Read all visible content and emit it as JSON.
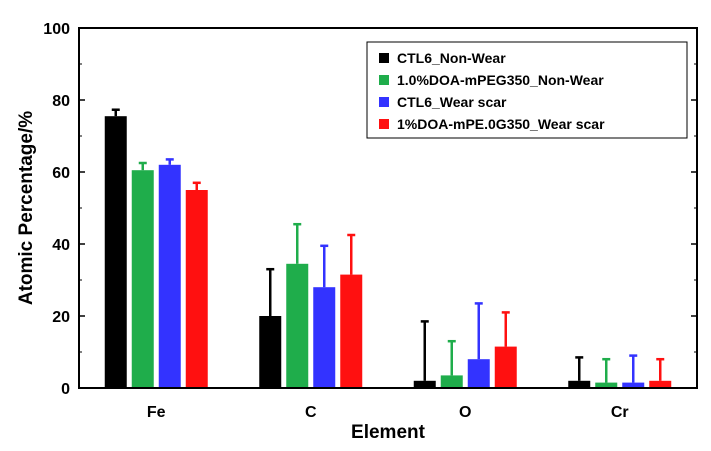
{
  "chart_data": {
    "type": "bar",
    "title": "",
    "xlabel": "Element",
    "ylabel": "Atomic Percentage/%",
    "categories": [
      "Fe",
      "C",
      "O",
      "Cr"
    ],
    "ylim": [
      0,
      100
    ],
    "yticks": [
      0,
      20,
      40,
      60,
      80,
      100
    ],
    "grid": false,
    "legend_position": "top-right",
    "error_bars": "upper",
    "series": [
      {
        "name": "CTL6_Non-Wear",
        "color": "#000000",
        "values": [
          75.5,
          20.0,
          2.0,
          2.0
        ],
        "errors": [
          1.8,
          13.0,
          16.5,
          6.5
        ]
      },
      {
        "name": "1.0%DOA-mPEG350_Non-Wear",
        "color": "#1fad4b",
        "values": [
          60.5,
          34.5,
          3.5,
          1.5
        ],
        "errors": [
          2.0,
          11.0,
          9.5,
          6.5
        ]
      },
      {
        "name": "CTL6_Wear scar",
        "color": "#3333ff",
        "values": [
          62.0,
          28.0,
          8.0,
          1.5
        ],
        "errors": [
          1.5,
          11.5,
          15.5,
          7.5
        ]
      },
      {
        "name": "1%DOA-mPE.0G350_Wear scar",
        "color": "#ff1010",
        "values": [
          55.0,
          31.5,
          11.5,
          2.0
        ],
        "errors": [
          2.0,
          11.0,
          9.5,
          6.0
        ]
      }
    ]
  }
}
